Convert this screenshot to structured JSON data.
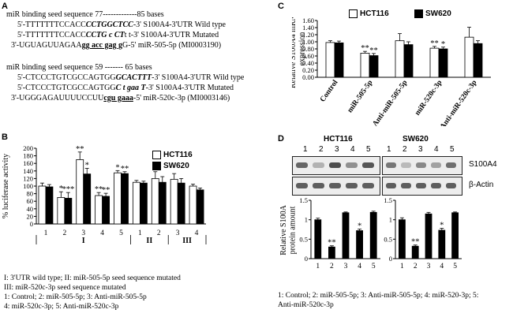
{
  "panel_a": {
    "label": "A",
    "block1": {
      "header": "miR binding  seed sequence  77-------------85 bases",
      "lines": [
        {
          "prefix": "5'-TTTTTTTCCACC",
          "seed": "CCTGGCTCC",
          "suffix": "-3'  S100A4-3'UTR Wild type"
        },
        {
          "prefix": "5'-TTTTTTTCCACC",
          "seed": "CCTG c CT",
          "suffix": "t t-3'  S100A4-3'UTR Mutated"
        },
        {
          "prefix": "3'-UGUAGUUAGAA",
          "seed": "gg  acc  gag  g",
          "suffix": "G-5' miR-505-5p  (MI0003190)"
        }
      ]
    },
    "block2": {
      "header": "miR binding  seed sequence  59  -------  65 bases",
      "lines": [
        {
          "prefix": "5'-CTCCCTGTCGCCAGTGG",
          "seed": "GCACTTT",
          "suffix": "-3'  S100A4-3'UTR Wild type"
        },
        {
          "prefix": "5'-CTCCCTGTCGCCAGTGG",
          "seed": "C t gaa T",
          "suffix": "-3'  S100A4-3'UTR Mutated"
        },
        {
          "prefix": "3'-UGGGAGAUUUUCCUU",
          "seed": "cgu   gaaa",
          "suffix": "-5' miR-520c-3p  (MI0003146)"
        }
      ]
    }
  },
  "chart_data": [
    {
      "id": "panel_b",
      "panel_label": "B",
      "type": "bar",
      "ylabel": "% luciferase activity",
      "ylim": [
        0,
        200
      ],
      "yticks": [
        "0",
        "20",
        "40",
        "60",
        "80",
        "100",
        "120",
        "140",
        "160",
        "180",
        "200"
      ],
      "categories": [
        "1",
        "2",
        "3",
        "4",
        "5",
        "1",
        "2",
        "3",
        "4"
      ],
      "group_labels": [
        "I",
        "II",
        "III"
      ],
      "legend": [
        "HCT116",
        "SW620"
      ],
      "series": [
        {
          "name": "HCT116",
          "values": [
            100,
            70,
            170,
            75,
            135,
            110,
            120,
            118,
            100
          ],
          "errors": [
            8,
            15,
            20,
            8,
            6,
            5,
            18,
            15,
            5
          ]
        },
        {
          "name": "SW620",
          "values": [
            98,
            68,
            132,
            73,
            133,
            108,
            110,
            108,
            90
          ],
          "errors": [
            6,
            15,
            15,
            8,
            5,
            5,
            15,
            12,
            5
          ]
        }
      ],
      "annotations": [
        {
          "index": 1,
          "series": 0,
          "text": "*"
        },
        {
          "index": 1,
          "series": 1,
          "text": "***"
        },
        {
          "index": 2,
          "series": 0,
          "text": "**"
        },
        {
          "index": 2,
          "series": 1,
          "text": "*"
        },
        {
          "index": 3,
          "series": 0,
          "text": "**"
        },
        {
          "index": 3,
          "series": 1,
          "text": "**"
        },
        {
          "index": 4,
          "series": 0,
          "text": "*"
        },
        {
          "index": 4,
          "series": 1,
          "text": "**"
        }
      ],
      "footnotes": [
        "I: 3'UTR wild type;  II: miR-505-5p  seed sequence mutated",
        "III: miR-520c-3p seed sequence mutated",
        "1: Control;  2: miR-505-5p;  3: Anti-miR-505-5p",
        "4: miR-520c-3p;  5: Anti-miR-520c-3p"
      ]
    },
    {
      "id": "panel_c",
      "panel_label": "C",
      "type": "bar",
      "ylabel": "Relative S100A4 mRNA expression",
      "ylim": [
        0,
        1.6
      ],
      "yticks": [
        "0.00",
        "0.20",
        "0.40",
        "0.60",
        "0.80",
        "1.00",
        "1.20",
        "1.40",
        "1.60"
      ],
      "categories": [
        "Control",
        "miR-505-5p",
        "Anti-miR-505-5p",
        "miR-520c-3p",
        "Anti-miR-520c-3p"
      ],
      "legend": [
        "HCT116",
        "SW620"
      ],
      "series": [
        {
          "name": "HCT116",
          "values": [
            0.98,
            0.68,
            1.03,
            0.82,
            1.13
          ],
          "errors": [
            0.05,
            0.05,
            0.2,
            0.05,
            0.28
          ]
        },
        {
          "name": "SW620",
          "values": [
            0.97,
            0.61,
            0.92,
            0.8,
            0.95
          ],
          "errors": [
            0.05,
            0.06,
            0.08,
            0.05,
            0.08
          ]
        }
      ],
      "annotations": [
        {
          "index": 1,
          "series": 0,
          "text": "**"
        },
        {
          "index": 1,
          "series": 1,
          "text": "**"
        },
        {
          "index": 3,
          "series": 0,
          "text": "**"
        },
        {
          "index": 3,
          "series": 1,
          "text": "*"
        }
      ]
    },
    {
      "id": "panel_d_hct116",
      "panel_label": "D",
      "type": "bar",
      "title": "HCT116",
      "ylabel": "Relative S100A protein amount",
      "ylim": [
        0,
        1.5
      ],
      "yticks": [
        "0",
        "0.5",
        "1",
        "1.5"
      ],
      "categories": [
        "1",
        "2",
        "3",
        "4",
        "5"
      ],
      "series": [
        {
          "name": "HCT116",
          "values": [
            1.0,
            0.3,
            1.18,
            0.72,
            1.19
          ],
          "errors": [
            0.04,
            0.03,
            0.02,
            0.04,
            0.03
          ]
        }
      ],
      "annotations": [
        {
          "index": 1,
          "series": 0,
          "text": "**"
        },
        {
          "index": 3,
          "series": 0,
          "text": "*"
        }
      ]
    },
    {
      "id": "panel_d_sw620",
      "type": "bar",
      "title": "SW620",
      "ylim": [
        0,
        1.5
      ],
      "yticks": [
        "0",
        "0.5",
        "1",
        "1.5"
      ],
      "categories": [
        "1",
        "2",
        "3",
        "4",
        "5"
      ],
      "series": [
        {
          "name": "SW620",
          "values": [
            1.0,
            0.32,
            1.15,
            0.73,
            1.18
          ],
          "errors": [
            0.05,
            0.03,
            0.04,
            0.05,
            0.02
          ]
        }
      ],
      "annotations": [
        {
          "index": 1,
          "series": 0,
          "text": "**"
        },
        {
          "index": 3,
          "series": 0,
          "text": "*"
        }
      ]
    }
  ],
  "panel_d": {
    "blot_lanes": [
      "1",
      "2",
      "3",
      "4",
      "5"
    ],
    "blot_labels": [
      "S100A4",
      "β-Actin"
    ],
    "hct116_s100a4_intensity": [
      0.8,
      0.35,
      0.95,
      0.55,
      0.9
    ],
    "hct116_actin_intensity": [
      0.85,
      0.85,
      0.85,
      0.85,
      0.85
    ],
    "sw620_s100a4_intensity": [
      0.7,
      0.3,
      0.6,
      0.45,
      0.75
    ],
    "sw620_actin_intensity": [
      0.85,
      0.85,
      0.85,
      0.85,
      0.85
    ],
    "footnotes": [
      "1: Control;  2: miR-505-5p;  3: Anti-miR-505-5p;  4: miR-520-3p;  5:",
      "Anti-miR-520c-3p"
    ]
  },
  "colors": {
    "hct116": "#ffffff",
    "sw620": "#000000",
    "stroke": "#000000"
  }
}
